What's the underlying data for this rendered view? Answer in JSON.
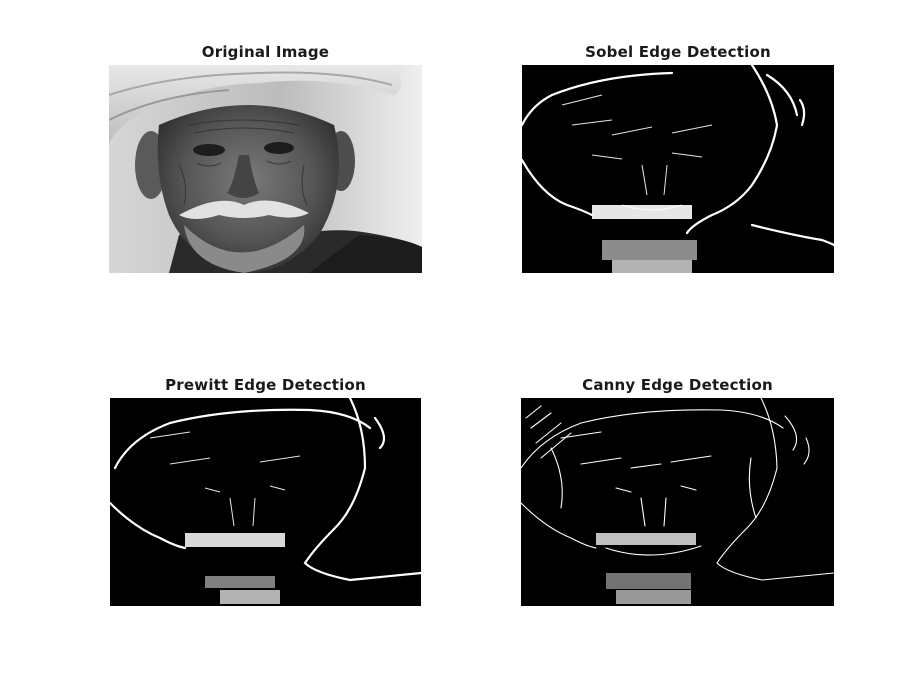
{
  "figure": {
    "panels": [
      {
        "title": "Original Image",
        "kind": "grayscale-photo"
      },
      {
        "title": "Sobel Edge Detection",
        "kind": "edge-map"
      },
      {
        "title": "Prewitt Edge Detection",
        "kind": "edge-map"
      },
      {
        "title": "Canny Edge Detection",
        "kind": "edge-map"
      }
    ]
  },
  "colors": {
    "background": "#ffffff",
    "edge_background": "#000000",
    "edge_foreground": "#ffffff"
  }
}
